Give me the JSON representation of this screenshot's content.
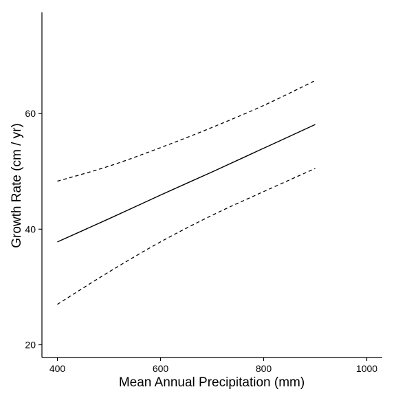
{
  "chart_data": {
    "type": "line",
    "title": "",
    "xlabel": "Mean Annual Precipitation (mm)",
    "ylabel": "Growth Rate (cm / yr)",
    "xlim": [
      370,
      1030
    ],
    "ylim": [
      17.8,
      77.5
    ],
    "x_ticks": [
      400,
      600,
      800,
      1000
    ],
    "y_ticks": [
      20,
      40,
      60
    ],
    "grid": false,
    "legend": "none",
    "x": [
      400,
      500,
      600,
      700,
      800,
      900
    ],
    "series": [
      {
        "style": "solid",
        "values": [
          37.8,
          41.8,
          45.9,
          49.9,
          54.0,
          58.1
        ]
      },
      {
        "style": "dashed",
        "values": [
          48.3,
          50.9,
          54.1,
          57.6,
          61.4,
          65.7
        ]
      },
      {
        "style": "dashed",
        "values": [
          27.0,
          32.6,
          37.8,
          42.4,
          46.5,
          50.5
        ]
      }
    ]
  }
}
